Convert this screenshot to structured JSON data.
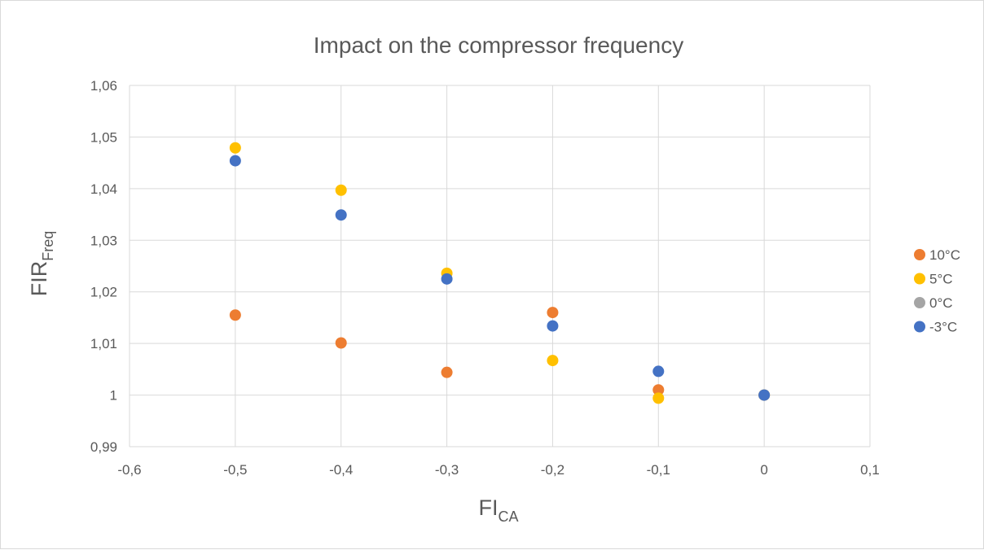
{
  "chart_data": {
    "type": "scatter",
    "title": "Impact on the compressor frequency",
    "xlabel": {
      "main": "FI",
      "sub": "CA"
    },
    "ylabel": {
      "main": "FIR",
      "sub": "Freq"
    },
    "xlim": [
      -0.6,
      0.1
    ],
    "ylim": [
      0.99,
      1.06
    ],
    "xticks": [
      -0.6,
      -0.5,
      -0.4,
      -0.3,
      -0.2,
      -0.1,
      0,
      0.1
    ],
    "yticks": [
      0.99,
      1,
      1.01,
      1.02,
      1.03,
      1.04,
      1.05,
      1.06
    ],
    "xtick_labels": [
      "-0,6",
      "-0,5",
      "-0,4",
      "-0,3",
      "-0,2",
      "-0,1",
      "0",
      "0,1"
    ],
    "ytick_labels": [
      "0,99",
      "1",
      "1,01",
      "1,02",
      "1,03",
      "1,04",
      "1,05",
      "1,06"
    ],
    "grid": "vertical and horizontal",
    "legend_position": "right",
    "series": [
      {
        "name": "10°C",
        "color": "#ed7d31",
        "x": [
          -0.5,
          -0.4,
          -0.3,
          -0.2,
          -0.1,
          0
        ],
        "y": [
          1.0155,
          1.0101,
          1.0044,
          1.016,
          1.001,
          1.0
        ]
      },
      {
        "name": "5°C",
        "color": "#ffc000",
        "x": [
          -0.5,
          -0.4,
          -0.3,
          -0.2,
          -0.1,
          0
        ],
        "y": [
          1.0479,
          1.0397,
          1.0236,
          1.0067,
          0.9994,
          1.0
        ]
      },
      {
        "name": "0°C",
        "color": "#a5a5a5",
        "x": [
          0
        ],
        "y": [
          1.0
        ]
      },
      {
        "name": "-3°C",
        "color": "#4472c4",
        "x": [
          -0.5,
          -0.4,
          -0.3,
          -0.2,
          -0.1,
          0
        ],
        "y": [
          1.0454,
          1.0349,
          1.0225,
          1.0134,
          1.0046,
          1.0
        ]
      }
    ]
  }
}
